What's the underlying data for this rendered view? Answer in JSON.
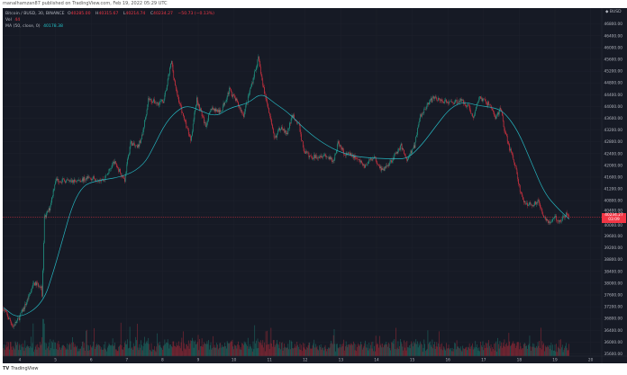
{
  "header": {
    "published": "manalhamzan87 published on TradingView.com, Feb 19, 2022 05:29 UTC"
  },
  "legend": {
    "symbol": "Bitcoin / BUSD, 30, BINANCE",
    "open_label": "O",
    "open": "40285.00",
    "high_label": "H",
    "high": "40315.67",
    "low_label": "L",
    "low": "40214.74",
    "close_label": "C",
    "close": "40234.27",
    "change": "−50.73 (−0.13%)",
    "vol_label": "Vol",
    "vol": "44",
    "ma_label": "MA (50, close, 0)",
    "ma": "40178.38"
  },
  "axis": {
    "currency": "BUSD"
  },
  "price_tag": {
    "price": "40234.27",
    "countdown": "03:09"
  },
  "footer": {
    "logo": "TradingView"
  },
  "colors": {
    "background": "#161a25",
    "up": "#22ab94",
    "down": "#f23645",
    "ma": "#26b6c0",
    "price_line": "#f23645"
  },
  "chart_data": {
    "type": "candlestick",
    "interval": "30m",
    "grid": true,
    "ylim": [
      35400,
      47000
    ],
    "yticks": [
      "46800.00",
      "46400.00",
      "46000.00",
      "45600.00",
      "45200.00",
      "44800.00",
      "44400.00",
      "44000.00",
      "43600.00",
      "43200.00",
      "42800.00",
      "42400.00",
      "42000.00",
      "41600.00",
      "41200.00",
      "40800.00",
      "40400.00",
      "40000.00",
      "39600.00",
      "39200.00",
      "38800.00",
      "38400.00",
      "38000.00",
      "37600.00",
      "37200.00",
      "36800.00",
      "36400.00",
      "36000.00",
      "35600.00"
    ],
    "xticks": [
      "4",
      "5",
      "6",
      "7",
      "8",
      "9",
      "10",
      "11",
      "12",
      "13",
      "14",
      "15",
      "16",
      "17",
      "18",
      "19",
      "20"
    ],
    "close_path": [
      [
        "2022-02-03 13:00",
        37140
      ],
      [
        "2022-02-03 19:30",
        36530
      ],
      [
        "2022-02-03 23:00",
        36776
      ],
      [
        "2022-02-04 03:30",
        37234
      ],
      [
        "2022-02-04 09:30",
        37998
      ],
      [
        "2022-02-04 14:30",
        37906
      ],
      [
        "2022-02-04 15:00",
        37540
      ],
      [
        "2022-02-04 16:30",
        40196
      ],
      [
        "2022-02-04 20:00",
        40531
      ],
      [
        "2022-02-05 00:00",
        41508
      ],
      [
        "2022-02-05 11:00",
        41447
      ],
      [
        "2022-02-05 23:30",
        41570
      ],
      [
        "2022-02-06 08:30",
        41508
      ],
      [
        "2022-02-06 15:30",
        42119
      ],
      [
        "2022-02-06 22:30",
        41508
      ],
      [
        "2022-02-07 02:30",
        42791
      ],
      [
        "2022-02-07 07:00",
        42577
      ],
      [
        "2022-02-07 10:30",
        43035
      ],
      [
        "2022-02-07 14:30",
        44256
      ],
      [
        "2022-02-07 20:30",
        44103
      ],
      [
        "2022-02-08 01:00",
        44195
      ],
      [
        "2022-02-08 06:00",
        45538
      ],
      [
        "2022-02-08 09:00",
        44561
      ],
      [
        "2022-02-08 15:00",
        43493
      ],
      [
        "2022-02-08 19:00",
        42882
      ],
      [
        "2022-02-08 23:00",
        44256
      ],
      [
        "2022-02-09 05:00",
        43340
      ],
      [
        "2022-02-09 09:00",
        43951
      ],
      [
        "2022-02-09 15:00",
        43798
      ],
      [
        "2022-02-09 21:00",
        44561
      ],
      [
        "2022-02-10 01:30",
        44195
      ],
      [
        "2022-02-10 06:30",
        43707
      ],
      [
        "2022-02-10 12:30",
        44867
      ],
      [
        "2022-02-10 16:30",
        45630
      ],
      [
        "2022-02-10 19:30",
        44714
      ],
      [
        "2022-02-11 00:30",
        43645
      ],
      [
        "2022-02-11 03:00",
        42882
      ],
      [
        "2022-02-11 08:00",
        43340
      ],
      [
        "2022-02-11 11:30",
        43035
      ],
      [
        "2022-02-11 15:30",
        43707
      ],
      [
        "2022-02-11 20:00",
        43340
      ],
      [
        "2022-02-11 23:00",
        42485
      ],
      [
        "2022-02-12 04:00",
        42272
      ],
      [
        "2022-02-12 13:00",
        42363
      ],
      [
        "2022-02-12 19:00",
        42119
      ],
      [
        "2022-02-12 22:00",
        42791
      ],
      [
        "2022-02-13 02:00",
        42424
      ],
      [
        "2022-02-13 10:00",
        42272
      ],
      [
        "2022-02-13 16:00",
        41966
      ],
      [
        "2022-02-13 22:00",
        42302
      ],
      [
        "2022-02-14 04:00",
        41814
      ],
      [
        "2022-02-14 10:30",
        42211
      ],
      [
        "2022-02-14 16:30",
        42669
      ],
      [
        "2022-02-14 20:30",
        42180
      ],
      [
        "2022-02-15 01:30",
        42669
      ],
      [
        "2022-02-15 05:00",
        43645
      ],
      [
        "2022-02-15 10:30",
        44103
      ],
      [
        "2022-02-15 15:00",
        44317
      ],
      [
        "2022-02-15 19:30",
        44195
      ],
      [
        "2022-02-16 01:30",
        44134
      ],
      [
        "2022-02-16 09:00",
        44195
      ],
      [
        "2022-02-16 14:00",
        44012
      ],
      [
        "2022-02-16 17:00",
        43584
      ],
      [
        "2022-02-16 21:00",
        44317
      ],
      [
        "2022-02-17 05:00",
        44012
      ],
      [
        "2022-02-17 08:00",
        43584
      ],
      [
        "2022-02-17 11:30",
        43951
      ],
      [
        "2022-02-17 14:00",
        43188
      ],
      [
        "2022-02-17 17:30",
        42577
      ],
      [
        "2022-02-17 21:30",
        41966
      ],
      [
        "2022-02-18 00:30",
        41142
      ],
      [
        "2022-02-18 03:30",
        40715
      ],
      [
        "2022-02-18 08:00",
        40654
      ],
      [
        "2022-02-18 13:00",
        40776
      ],
      [
        "2022-02-18 16:30",
        40287
      ],
      [
        "2022-02-18 20:30",
        40043
      ],
      [
        "2022-02-19 00:00",
        40226
      ],
      [
        "2022-02-19 03:30",
        40104
      ],
      [
        "2022-02-19 07:30",
        40348
      ],
      [
        "2022-02-19 09:30",
        40234.27
      ]
    ],
    "ma_series": {
      "name": "MA (50, close, 0)",
      "points": [
        [
          "2022-02-03 13:00",
          37173
        ],
        [
          "2022-02-03 23:00",
          36776
        ],
        [
          "2022-02-04 15:30",
          37295
        ],
        [
          "2022-02-04 23:00",
          38455
        ],
        [
          "2022-02-05 05:00",
          39524
        ],
        [
          "2022-02-05 11:00",
          40593
        ],
        [
          "2022-02-05 17:00",
          41203
        ],
        [
          "2022-02-05 23:30",
          41447
        ],
        [
          "2022-02-06 23:30",
          41631
        ],
        [
          "2022-02-07 11:30",
          42027
        ],
        [
          "2022-02-07 17:30",
          42577
        ],
        [
          "2022-02-08 02:30",
          43493
        ],
        [
          "2022-02-08 12:00",
          43951
        ],
        [
          "2022-02-08 18:00",
          44012
        ],
        [
          "2022-02-09 00:00",
          43890
        ],
        [
          "2022-02-09 12:00",
          43645
        ],
        [
          "2022-02-09 21:00",
          43951
        ],
        [
          "2022-02-10 09:30",
          44103
        ],
        [
          "2022-02-10 18:30",
          44470
        ],
        [
          "2022-02-11 03:30",
          44103
        ],
        [
          "2022-02-11 12:30",
          43798
        ],
        [
          "2022-02-12 00:30",
          43188
        ],
        [
          "2022-02-12 12:30",
          42730
        ],
        [
          "2022-02-13 00:30",
          42424
        ],
        [
          "2022-02-13 12:30",
          42272
        ],
        [
          "2022-02-14 12:30",
          42211
        ],
        [
          "2022-02-14 21:30",
          42241
        ],
        [
          "2022-02-15 07:00",
          42730
        ],
        [
          "2022-02-15 16:00",
          43340
        ],
        [
          "2022-02-16 01:30",
          43951
        ],
        [
          "2022-02-16 10:30",
          44164
        ],
        [
          "2022-02-16 19:30",
          44042
        ],
        [
          "2022-02-17 08:00",
          43951
        ],
        [
          "2022-02-17 14:00",
          43798
        ],
        [
          "2022-02-17 23:00",
          43188
        ],
        [
          "2022-02-18 08:00",
          42119
        ],
        [
          "2022-02-18 17:00",
          41050
        ],
        [
          "2022-02-19 02:00",
          40531
        ],
        [
          "2022-02-19 09:30",
          40178.38
        ]
      ]
    },
    "last_price": 40234.27
  }
}
